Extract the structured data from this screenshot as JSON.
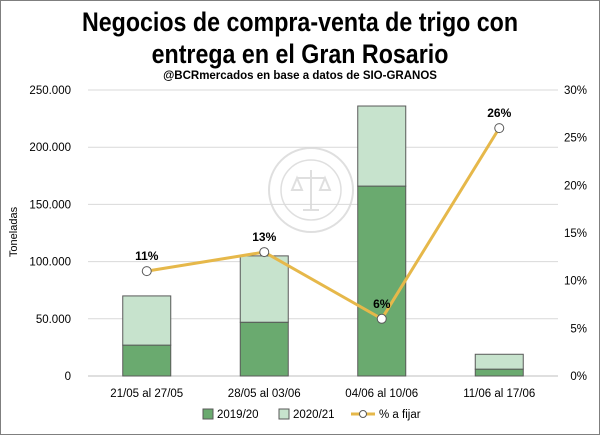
{
  "chart_data": {
    "type": "bar",
    "title_line1": "Negocios de compra-venta de trigo con",
    "title_line2": "entrega en el Gran Rosario",
    "subtitle": "@BCRmercados en base a datos de SIO-GRANOS",
    "ylabel": "Toneladas",
    "categories": [
      "21/05 al 27/05",
      "28/05 al 03/06",
      "04/06 al 10/06",
      "11/06 al 17/06"
    ],
    "stacked": true,
    "series": [
      {
        "name": "2019/20",
        "values": [
          27000,
          47000,
          166000,
          6000
        ],
        "color": "#6aaa6f"
      },
      {
        "name": "2020/21",
        "values": [
          43000,
          58000,
          70000,
          13000
        ],
        "color": "#c7e3cd"
      }
    ],
    "line_series": {
      "name": "% a fijar",
      "values": [
        11,
        13,
        6,
        26
      ],
      "labels": [
        "11%",
        "13%",
        "6%",
        "26%"
      ],
      "color": "#e6b84a",
      "axis": "right"
    },
    "ylim": [
      0,
      250000
    ],
    "y_ticks": [
      "0",
      "50.000",
      "100.000",
      "150.000",
      "200.000",
      "250.000"
    ],
    "y2lim": [
      0,
      30
    ],
    "y2_ticks": [
      "0%",
      "5%",
      "10%",
      "15%",
      "20%",
      "25%",
      "30%"
    ],
    "legend_position": "bottom",
    "watermark": "BOLSA DE COMERCIO DE ROSARIO"
  }
}
